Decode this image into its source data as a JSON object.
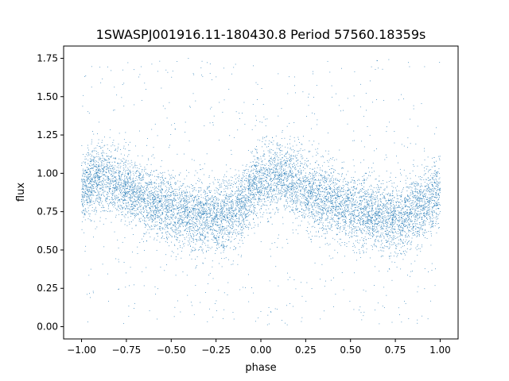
{
  "chart_data": {
    "type": "scatter",
    "title": "1SWASPJ001916.11-180430.8 Period 57560.18359s",
    "xlabel": "phase",
    "ylabel": "flux",
    "xlim": [
      -1.1,
      1.1
    ],
    "ylim": [
      -0.08,
      1.83
    ],
    "xticks": [
      -1.0,
      -0.75,
      -0.5,
      -0.25,
      0.0,
      0.25,
      0.5,
      0.75,
      1.0
    ],
    "xtick_labels": [
      "−1.00",
      "−0.75",
      "−0.50",
      "−0.25",
      "0.00",
      "0.25",
      "0.50",
      "0.75",
      "1.00"
    ],
    "yticks": [
      0.0,
      0.25,
      0.5,
      0.75,
      1.0,
      1.25,
      1.5,
      1.75
    ],
    "ytick_labels": [
      "0.00",
      "0.25",
      "0.50",
      "0.75",
      "1.00",
      "1.25",
      "1.50",
      "1.75"
    ],
    "grid": false,
    "series": [
      {
        "color": "#1f77b4",
        "marker_size": 0.8,
        "x": [
          -1.0,
          -0.95,
          -0.9,
          -0.85,
          -0.8,
          -0.75,
          -0.7,
          -0.65,
          -0.6,
          -0.55,
          -0.5,
          -0.45,
          -0.4,
          -0.35,
          -0.3,
          -0.25,
          -0.2,
          -0.15,
          -0.1,
          -0.05,
          0.0,
          0.05,
          0.1,
          0.15,
          0.2,
          0.25,
          0.3,
          0.35,
          0.4,
          0.45,
          0.5,
          0.55,
          0.6,
          0.65,
          0.7,
          0.75,
          0.8,
          0.85,
          0.9,
          0.95,
          1.0
        ],
        "y": [
          0.88,
          0.94,
          0.97,
          0.96,
          0.93,
          0.9,
          0.87,
          0.84,
          0.82,
          0.79,
          0.76,
          0.74,
          0.73,
          0.72,
          0.71,
          0.71,
          0.72,
          0.74,
          0.8,
          0.9,
          0.95,
          0.97,
          0.98,
          0.96,
          0.93,
          0.9,
          0.86,
          0.84,
          0.82,
          0.79,
          0.77,
          0.75,
          0.74,
          0.72,
          0.71,
          0.71,
          0.72,
          0.74,
          0.78,
          0.84,
          0.88
        ],
        "scatter_sd": 0.11,
        "outlier_range": [
          0.0,
          1.75
        ]
      }
    ]
  }
}
